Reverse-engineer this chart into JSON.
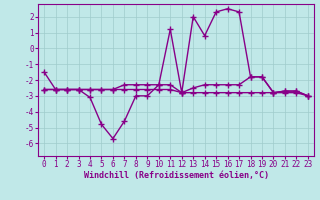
{
  "background_color": "#c0e8e8",
  "grid_color": "#a0cccc",
  "line_color": "#880088",
  "xlabel": "Windchill (Refroidissement éolien,°C)",
  "xlim": [
    -0.5,
    23.5
  ],
  "ylim": [
    -6.8,
    2.8
  ],
  "xticks": [
    0,
    1,
    2,
    3,
    4,
    5,
    6,
    7,
    8,
    9,
    10,
    11,
    12,
    13,
    14,
    15,
    16,
    17,
    18,
    19,
    20,
    21,
    22,
    23
  ],
  "yticks": [
    -6,
    -5,
    -4,
    -3,
    -2,
    -1,
    0,
    1,
    2
  ],
  "series1": [
    -1.5,
    -2.6,
    -2.6,
    -2.6,
    -3.1,
    -4.8,
    -5.7,
    -4.6,
    -3.0,
    -3.0,
    -2.3,
    1.2,
    -2.8,
    2.0,
    0.8,
    2.3,
    2.5,
    2.3,
    -1.8,
    -1.8,
    -2.8,
    -2.7,
    -2.7,
    -3.0
  ],
  "series2": [
    -2.6,
    -2.6,
    -2.6,
    -2.6,
    -2.6,
    -2.6,
    -2.6,
    -2.3,
    -2.3,
    -2.3,
    -2.3,
    -2.3,
    -2.8,
    -2.5,
    -2.3,
    -2.3,
    -2.3,
    -2.3,
    -1.8,
    -1.8,
    -2.8,
    -2.7,
    -2.7,
    -3.0
  ],
  "series3": [
    -2.6,
    -2.6,
    -2.6,
    -2.6,
    -2.6,
    -2.6,
    -2.6,
    -2.6,
    -2.6,
    -2.6,
    -2.6,
    -2.6,
    -2.8,
    -2.8,
    -2.8,
    -2.8,
    -2.8,
    -2.8,
    -2.8,
    -2.8,
    -2.8,
    -2.8,
    -2.8,
    -3.0
  ],
  "marker": "+",
  "markersize": 4,
  "markeredgewidth": 1.0,
  "linewidth": 1.0,
  "tick_fontsize": 5.5,
  "label_fontsize": 6.0
}
